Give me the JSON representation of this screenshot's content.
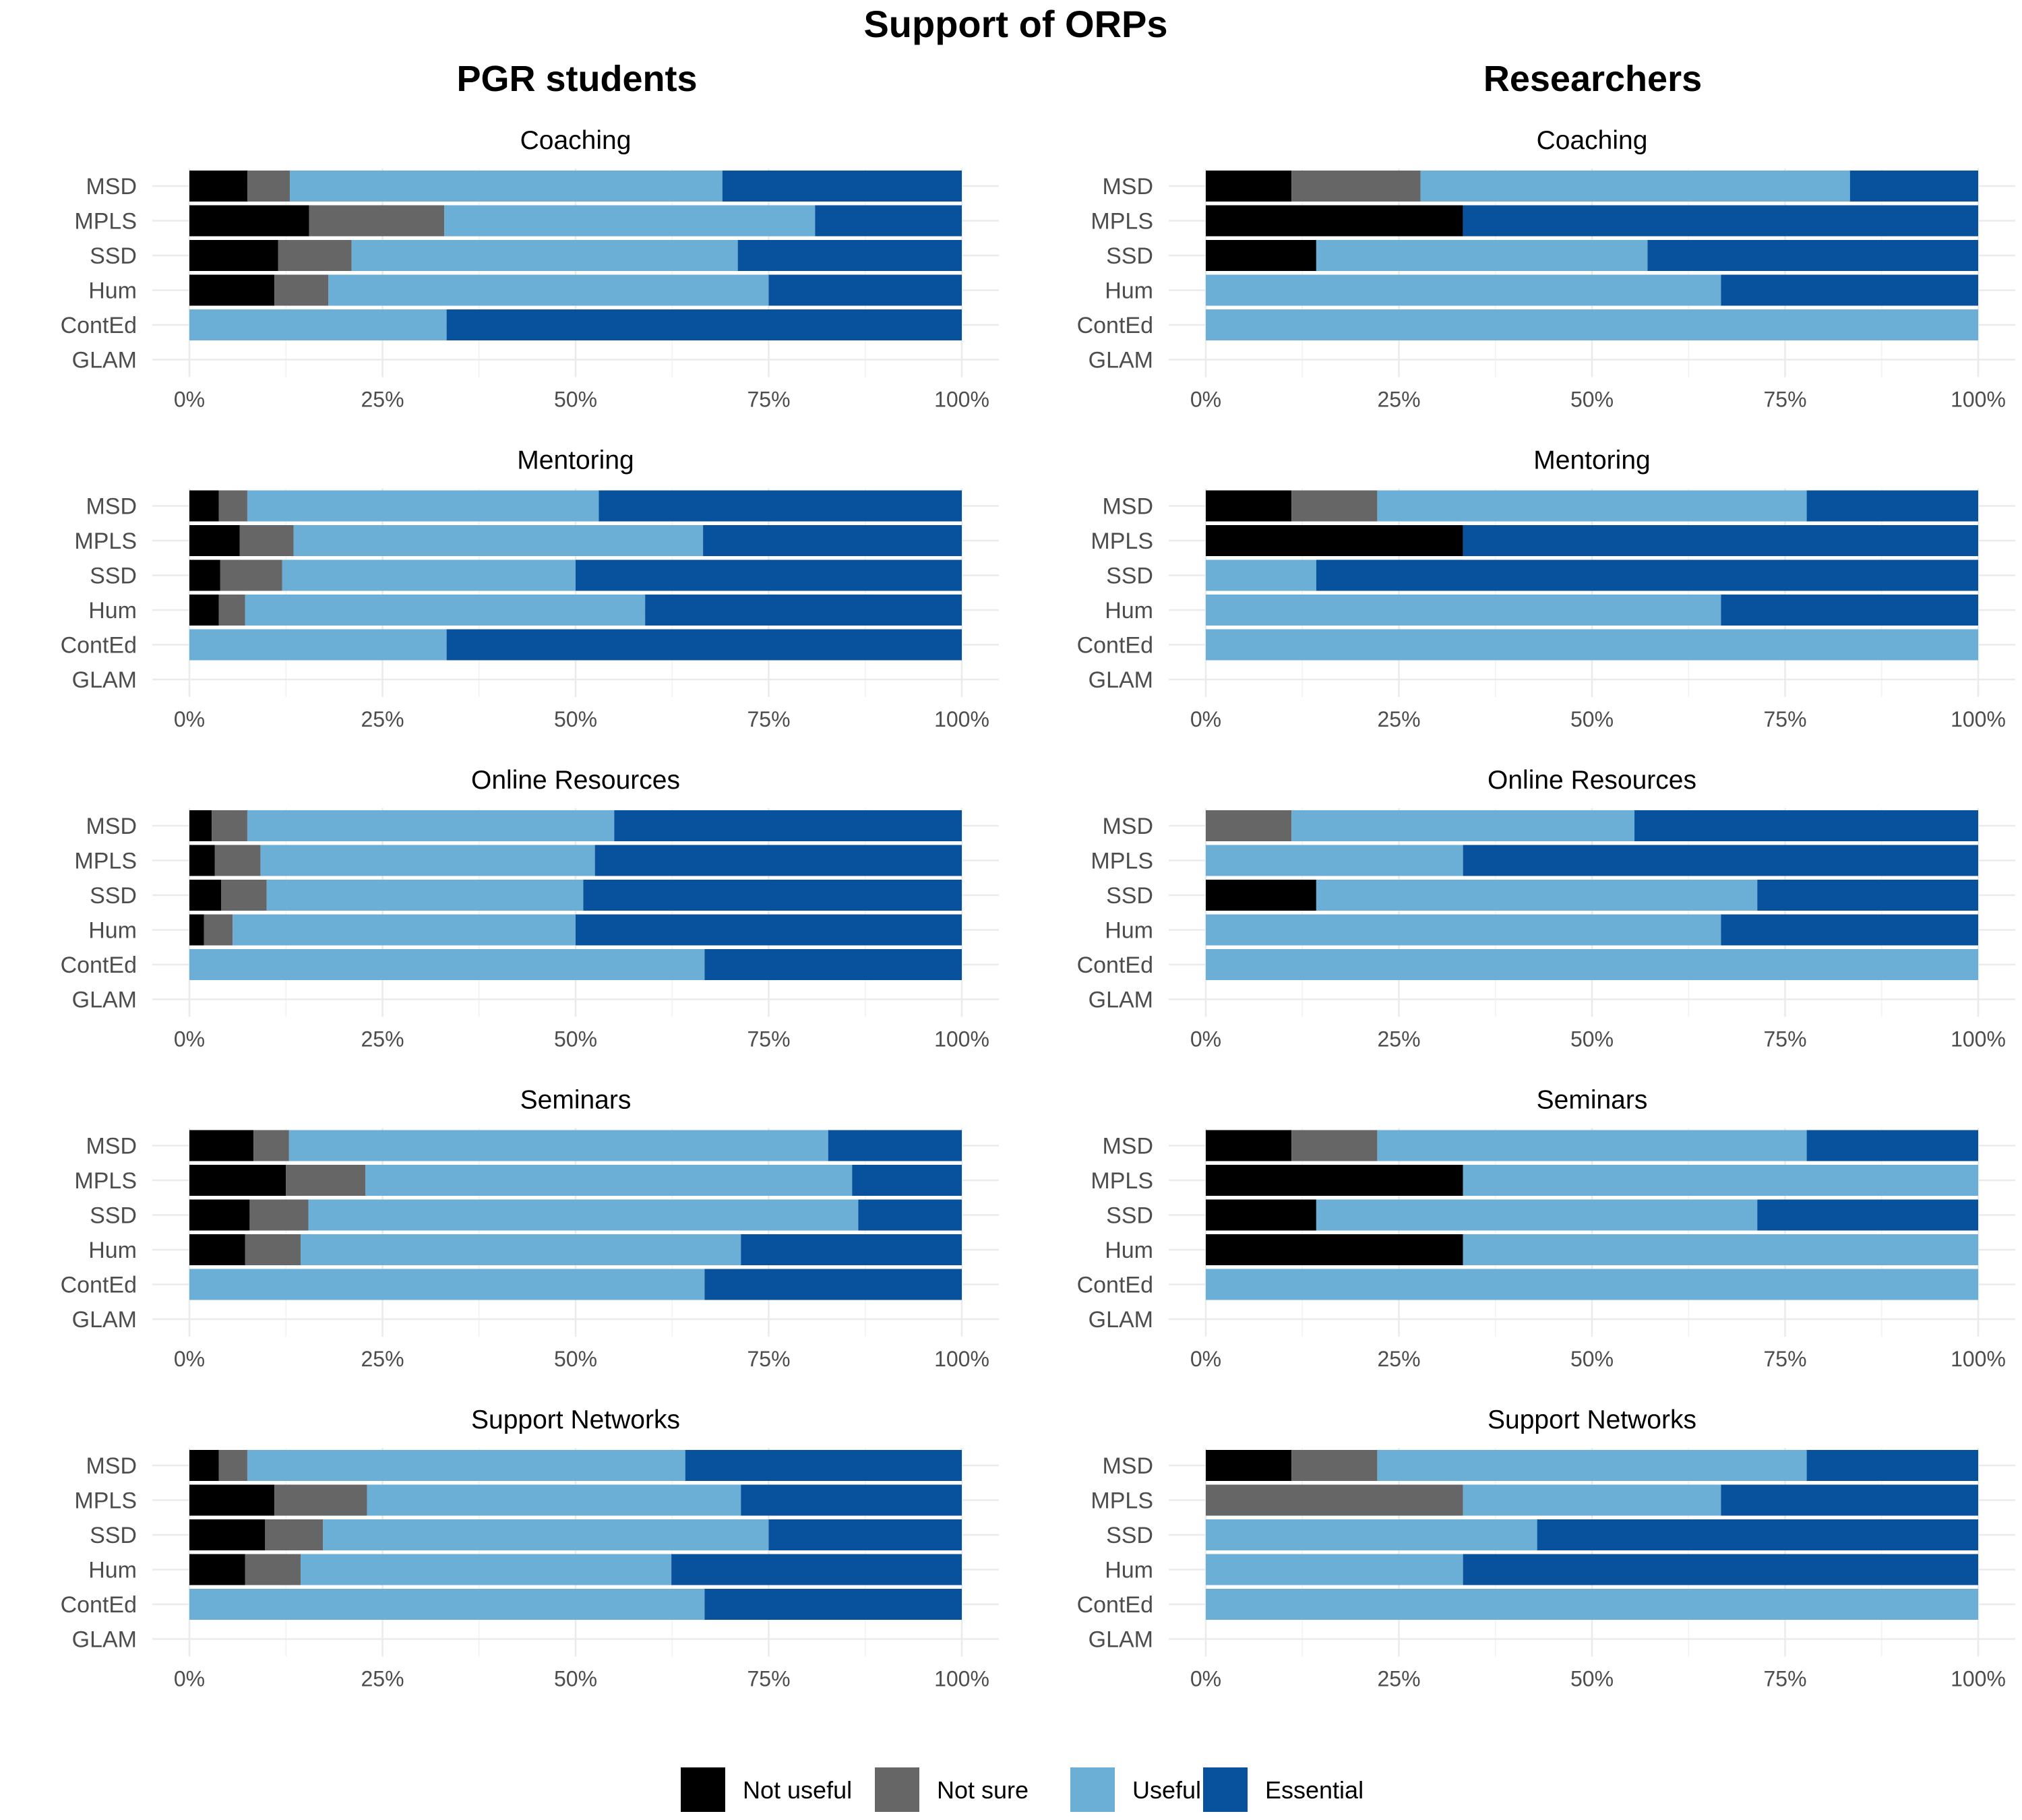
{
  "title": "Support of ORPs",
  "columns": [
    "PGR students",
    "Researchers"
  ],
  "legend": [
    {
      "name": "Not useful",
      "color": "#000000"
    },
    {
      "name": "Not sure",
      "color": "#666666"
    },
    {
      "name": "Useful",
      "color": "#6baed6"
    },
    {
      "name": "Essential",
      "color": "#08519c"
    }
  ],
  "chart_data": {
    "type": "bar",
    "orientation": "horizontal",
    "stacked": true,
    "normalized": true,
    "categories": [
      "MSD",
      "MPLS",
      "SSD",
      "Hum",
      "ContEd",
      "GLAM"
    ],
    "series_names": [
      "Not useful",
      "Not sure",
      "Useful",
      "Essential"
    ],
    "xlim": [
      0,
      100
    ],
    "x_ticks": [
      "0%",
      "25%",
      "50%",
      "75%",
      "100%"
    ],
    "grid": true,
    "legend_position": "bottom",
    "panels": [
      {
        "column": "PGR students",
        "title": "Coaching",
        "rows": {
          "MSD": [
            7.5,
            5.5,
            56,
            31
          ],
          "MPLS": [
            15.5,
            17.5,
            48,
            19
          ],
          "SSD": [
            11.5,
            9.5,
            50,
            29
          ],
          "Hum": [
            11,
            7,
            57,
            25
          ],
          "ContEd": [
            0,
            0,
            33.3,
            66.7
          ],
          "GLAM": [
            0,
            0,
            0,
            0
          ]
        }
      },
      {
        "column": "Researchers",
        "title": "Coaching",
        "rows": {
          "MSD": [
            11.1,
            16.7,
            55.6,
            16.6
          ],
          "MPLS": [
            33.3,
            0,
            0,
            66.7
          ],
          "SSD": [
            14.3,
            0,
            42.9,
            42.8
          ],
          "Hum": [
            0,
            0,
            66.7,
            33.3
          ],
          "ContEd": [
            0,
            0,
            100,
            0
          ],
          "GLAM": [
            0,
            0,
            0,
            0
          ]
        }
      },
      {
        "column": "PGR students",
        "title": "Mentoring",
        "rows": {
          "MSD": [
            3.8,
            3.7,
            45.5,
            47
          ],
          "MPLS": [
            6.5,
            7,
            53,
            33.5
          ],
          "SSD": [
            4,
            8,
            38,
            50
          ],
          "Hum": [
            3.8,
            3.4,
            51.8,
            41
          ],
          "ContEd": [
            0,
            0,
            33.3,
            66.7
          ],
          "GLAM": [
            0,
            0,
            0,
            0
          ]
        }
      },
      {
        "column": "Researchers",
        "title": "Mentoring",
        "rows": {
          "MSD": [
            11.1,
            11.1,
            55.6,
            22.2
          ],
          "MPLS": [
            33.3,
            0,
            0,
            66.7
          ],
          "SSD": [
            0,
            0,
            14.3,
            85.7
          ],
          "Hum": [
            0,
            0,
            66.7,
            33.3
          ],
          "ContEd": [
            0,
            0,
            100,
            0
          ],
          "GLAM": [
            0,
            0,
            0,
            0
          ]
        }
      },
      {
        "column": "PGR students",
        "title": "Online Resources",
        "rows": {
          "MSD": [
            2.9,
            4.6,
            47.5,
            45
          ],
          "MPLS": [
            3.3,
            5.9,
            43.3,
            47.5
          ],
          "SSD": [
            4.1,
            5.9,
            41,
            49
          ],
          "Hum": [
            1.9,
            3.7,
            44.4,
            50
          ],
          "ContEd": [
            0,
            0,
            66.7,
            33.3
          ],
          "GLAM": [
            0,
            0,
            0,
            0
          ]
        }
      },
      {
        "column": "Researchers",
        "title": "Online Resources",
        "rows": {
          "MSD": [
            0,
            11.1,
            44.4,
            44.5
          ],
          "MPLS": [
            0,
            0,
            33.3,
            66.7
          ],
          "SSD": [
            14.3,
            0,
            57.1,
            28.6
          ],
          "Hum": [
            0,
            0,
            66.7,
            33.3
          ],
          "ContEd": [
            0,
            0,
            100,
            0
          ],
          "GLAM": [
            0,
            0,
            0,
            0
          ]
        }
      },
      {
        "column": "PGR students",
        "title": "Seminars",
        "rows": {
          "MSD": [
            8.3,
            4.6,
            69.8,
            17.3
          ],
          "MPLS": [
            12.5,
            10.3,
            63,
            14.2
          ],
          "SSD": [
            7.8,
            7.6,
            71.2,
            13.4
          ],
          "Hum": [
            7.2,
            7.2,
            57,
            28.6
          ],
          "ContEd": [
            0,
            0,
            66.7,
            33.3
          ],
          "GLAM": [
            0,
            0,
            0,
            0
          ]
        }
      },
      {
        "column": "Researchers",
        "title": "Seminars",
        "rows": {
          "MSD": [
            11.1,
            11.1,
            55.6,
            22.2
          ],
          "MPLS": [
            33.3,
            0,
            66.7,
            0
          ],
          "SSD": [
            14.3,
            0,
            57.1,
            28.6
          ],
          "Hum": [
            33.3,
            0,
            66.7,
            0
          ],
          "ContEd": [
            0,
            0,
            100,
            0
          ],
          "GLAM": [
            0,
            0,
            0,
            0
          ]
        }
      },
      {
        "column": "PGR students",
        "title": "Support Networks",
        "rows": {
          "MSD": [
            3.8,
            3.7,
            56.7,
            35.8
          ],
          "MPLS": [
            11,
            12,
            48.4,
            28.6
          ],
          "SSD": [
            9.8,
            7.5,
            57.7,
            25
          ],
          "Hum": [
            7.2,
            7.2,
            48,
            37.6
          ],
          "ContEd": [
            0,
            0,
            66.7,
            33.3
          ],
          "GLAM": [
            0,
            0,
            0,
            0
          ]
        }
      },
      {
        "column": "Researchers",
        "title": "Support Networks",
        "rows": {
          "MSD": [
            11.1,
            11.1,
            55.6,
            22.2
          ],
          "MPLS": [
            0,
            33.3,
            33.4,
            33.3
          ],
          "SSD": [
            0,
            0,
            42.9,
            57.1
          ],
          "Hum": [
            0,
            0,
            33.3,
            66.7
          ],
          "ContEd": [
            0,
            0,
            100,
            0
          ],
          "GLAM": [
            0,
            0,
            0,
            0
          ]
        }
      }
    ]
  }
}
